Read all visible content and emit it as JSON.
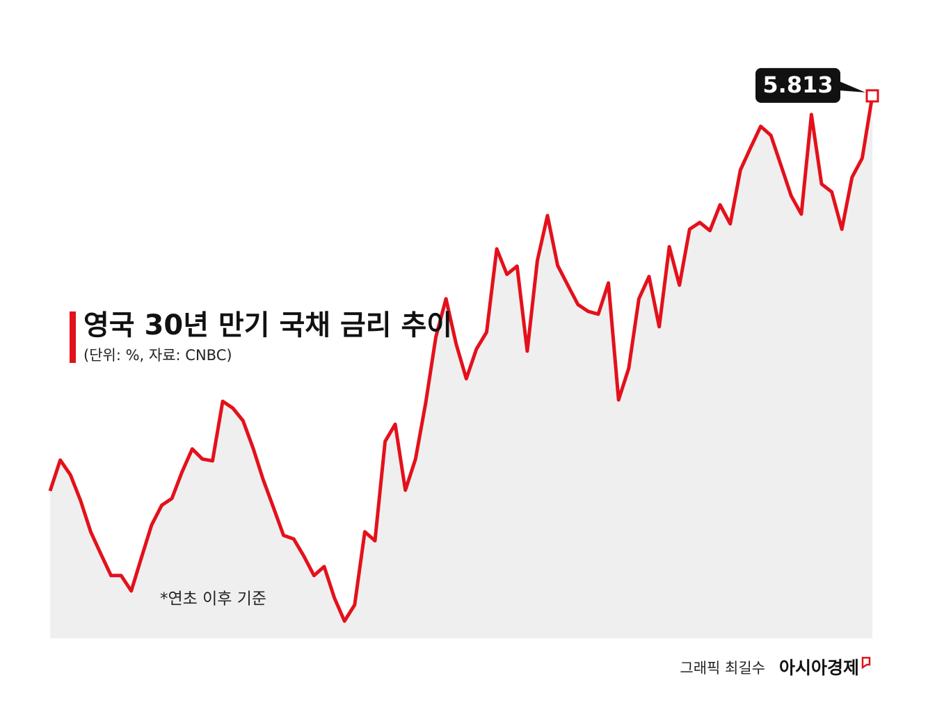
{
  "chart_data": {
    "type": "line",
    "title": "영국 30년 만기 국채 금리 추이",
    "subtitle": "(단위: %, 자료: CNBC)",
    "annotation": "*연초 이후 기준",
    "credit": "그래픽 최길수",
    "source_brand": "아시아경제",
    "color": "#e3111b",
    "area_color": "#efefef",
    "ylim": [
      4.3,
      5.9
    ],
    "values": [
      4.711,
      4.797,
      4.756,
      4.684,
      4.597,
      4.535,
      4.475,
      4.475,
      4.432,
      4.525,
      4.616,
      4.671,
      4.69,
      4.764,
      4.828,
      4.8,
      4.795,
      4.961,
      4.942,
      4.907,
      4.83,
      4.742,
      4.665,
      4.587,
      4.577,
      4.529,
      4.475,
      4.5,
      4.413,
      4.348,
      4.393,
      4.597,
      4.572,
      4.849,
      4.897,
      4.713,
      4.8,
      4.956,
      5.14,
      5.247,
      5.121,
      5.024,
      5.107,
      5.154,
      5.386,
      5.315,
      5.338,
      5.101,
      5.353,
      5.479,
      5.34,
      5.285,
      5.231,
      5.212,
      5.204,
      5.291,
      4.965,
      5.053,
      5.247,
      5.309,
      5.169,
      5.392,
      5.285,
      5.441,
      5.46,
      5.437,
      5.509,
      5.456,
      5.606,
      5.668,
      5.728,
      5.703,
      5.619,
      5.534,
      5.483,
      5.761,
      5.567,
      5.545,
      5.441,
      5.586,
      5.639,
      5.813
    ]
  }
}
